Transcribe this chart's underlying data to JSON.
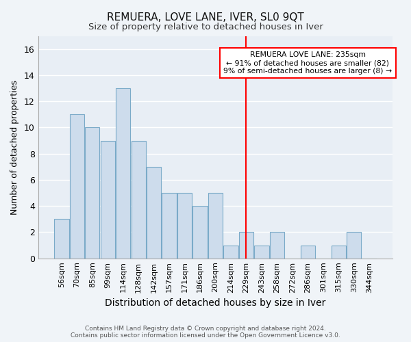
{
  "title": "REMUERA, LOVE LANE, IVER, SL0 9QT",
  "subtitle": "Size of property relative to detached houses in Iver",
  "xlabel": "Distribution of detached houses by size in Iver",
  "ylabel": "Number of detached properties",
  "categories": [
    "56sqm",
    "70sqm",
    "85sqm",
    "99sqm",
    "114sqm",
    "128sqm",
    "142sqm",
    "157sqm",
    "171sqm",
    "186sqm",
    "200sqm",
    "214sqm",
    "229sqm",
    "243sqm",
    "258sqm",
    "272sqm",
    "286sqm",
    "301sqm",
    "315sqm",
    "330sqm",
    "344sqm"
  ],
  "values": [
    3,
    11,
    10,
    9,
    13,
    9,
    7,
    5,
    5,
    4,
    5,
    1,
    2,
    1,
    2,
    0,
    1,
    0,
    1,
    2,
    0
  ],
  "bar_color": "#cddcec",
  "bar_edge_color": "#7aaac8",
  "background_color": "#e8eef5",
  "grid_color": "#ffffff",
  "red_line_x": 12,
  "annotation_text_line1": "REMUERA LOVE LANE: 235sqm",
  "annotation_text_line2": "← 91% of detached houses are smaller (82)",
  "annotation_text_line3": "9% of semi-detached houses are larger (8) →",
  "footer_line1": "Contains HM Land Registry data © Crown copyright and database right 2024.",
  "footer_line2": "Contains public sector information licensed under the Open Government Licence v3.0.",
  "ylim": [
    0,
    17
  ],
  "yticks": [
    0,
    2,
    4,
    6,
    8,
    10,
    12,
    14,
    16
  ],
  "title_fontsize": 11,
  "subtitle_fontsize": 9.5
}
